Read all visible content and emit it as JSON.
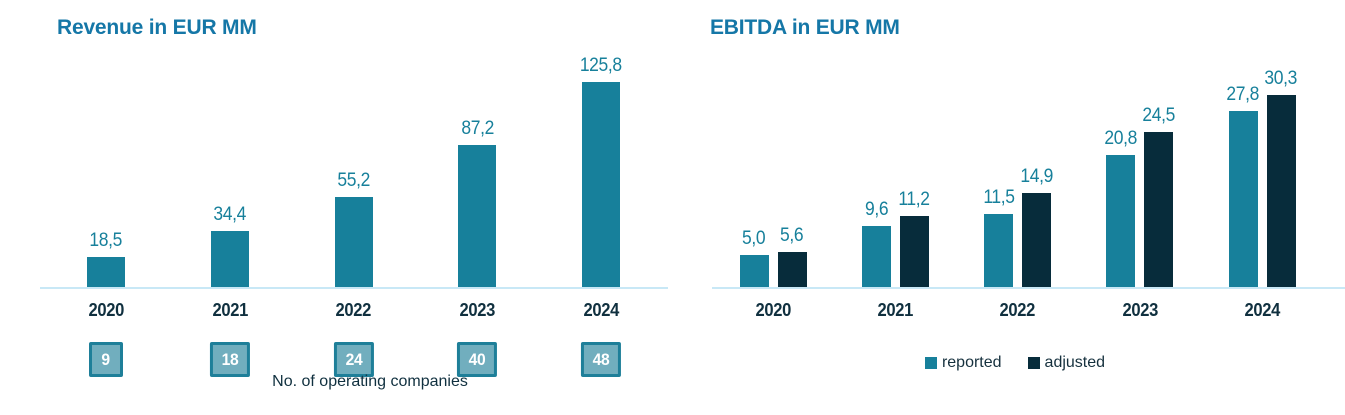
{
  "colors": {
    "teal": "#17809b",
    "navy": "#072c3b",
    "title_blue": "#1577a7",
    "value_label": "#17809b",
    "dark_text": "#10303f",
    "baseline": "#c8e8f6",
    "box_fill": "#71aebe",
    "box_border": "#1e7f99",
    "box_text": "#ffffff",
    "legend_text": "#16313e"
  },
  "chart_data": [
    {
      "type": "bar",
      "title": "Revenue in EUR MM",
      "categories": [
        "2020",
        "2021",
        "2022",
        "2023",
        "2024"
      ],
      "values": [
        18.5,
        34.4,
        55.2,
        87.2,
        125.8
      ],
      "value_labels": [
        "18,5",
        "34,4",
        "55,2",
        "87,2",
        "125,8"
      ],
      "annotations": {
        "label": "No. of operating companies",
        "values": [
          "9",
          "18",
          "24",
          "40",
          "48"
        ]
      },
      "xlabel": "",
      "ylabel": "",
      "ylim": [
        0,
        130
      ],
      "grid": false,
      "axes_visible": false,
      "legend_position": "none"
    },
    {
      "type": "bar",
      "title": "EBITDA in EUR MM",
      "categories": [
        "2020",
        "2021",
        "2022",
        "2023",
        "2024"
      ],
      "series": [
        {
          "name": "reported",
          "color": "#17809b",
          "values": [
            5.0,
            9.6,
            11.5,
            20.8,
            27.8
          ],
          "labels": [
            "5,0",
            "9,6",
            "11,5",
            "20,8",
            "27,8"
          ]
        },
        {
          "name": "adjusted",
          "color": "#072c3b",
          "values": [
            5.6,
            11.2,
            14.9,
            24.5,
            30.3
          ],
          "labels": [
            "5,6",
            "11,2",
            "14,9",
            "24,5",
            "30,3"
          ]
        }
      ],
      "xlabel": "",
      "ylabel": "",
      "ylim": [
        0,
        32
      ],
      "grid": false,
      "axes_visible": false,
      "legend_position": "bottom"
    }
  ]
}
